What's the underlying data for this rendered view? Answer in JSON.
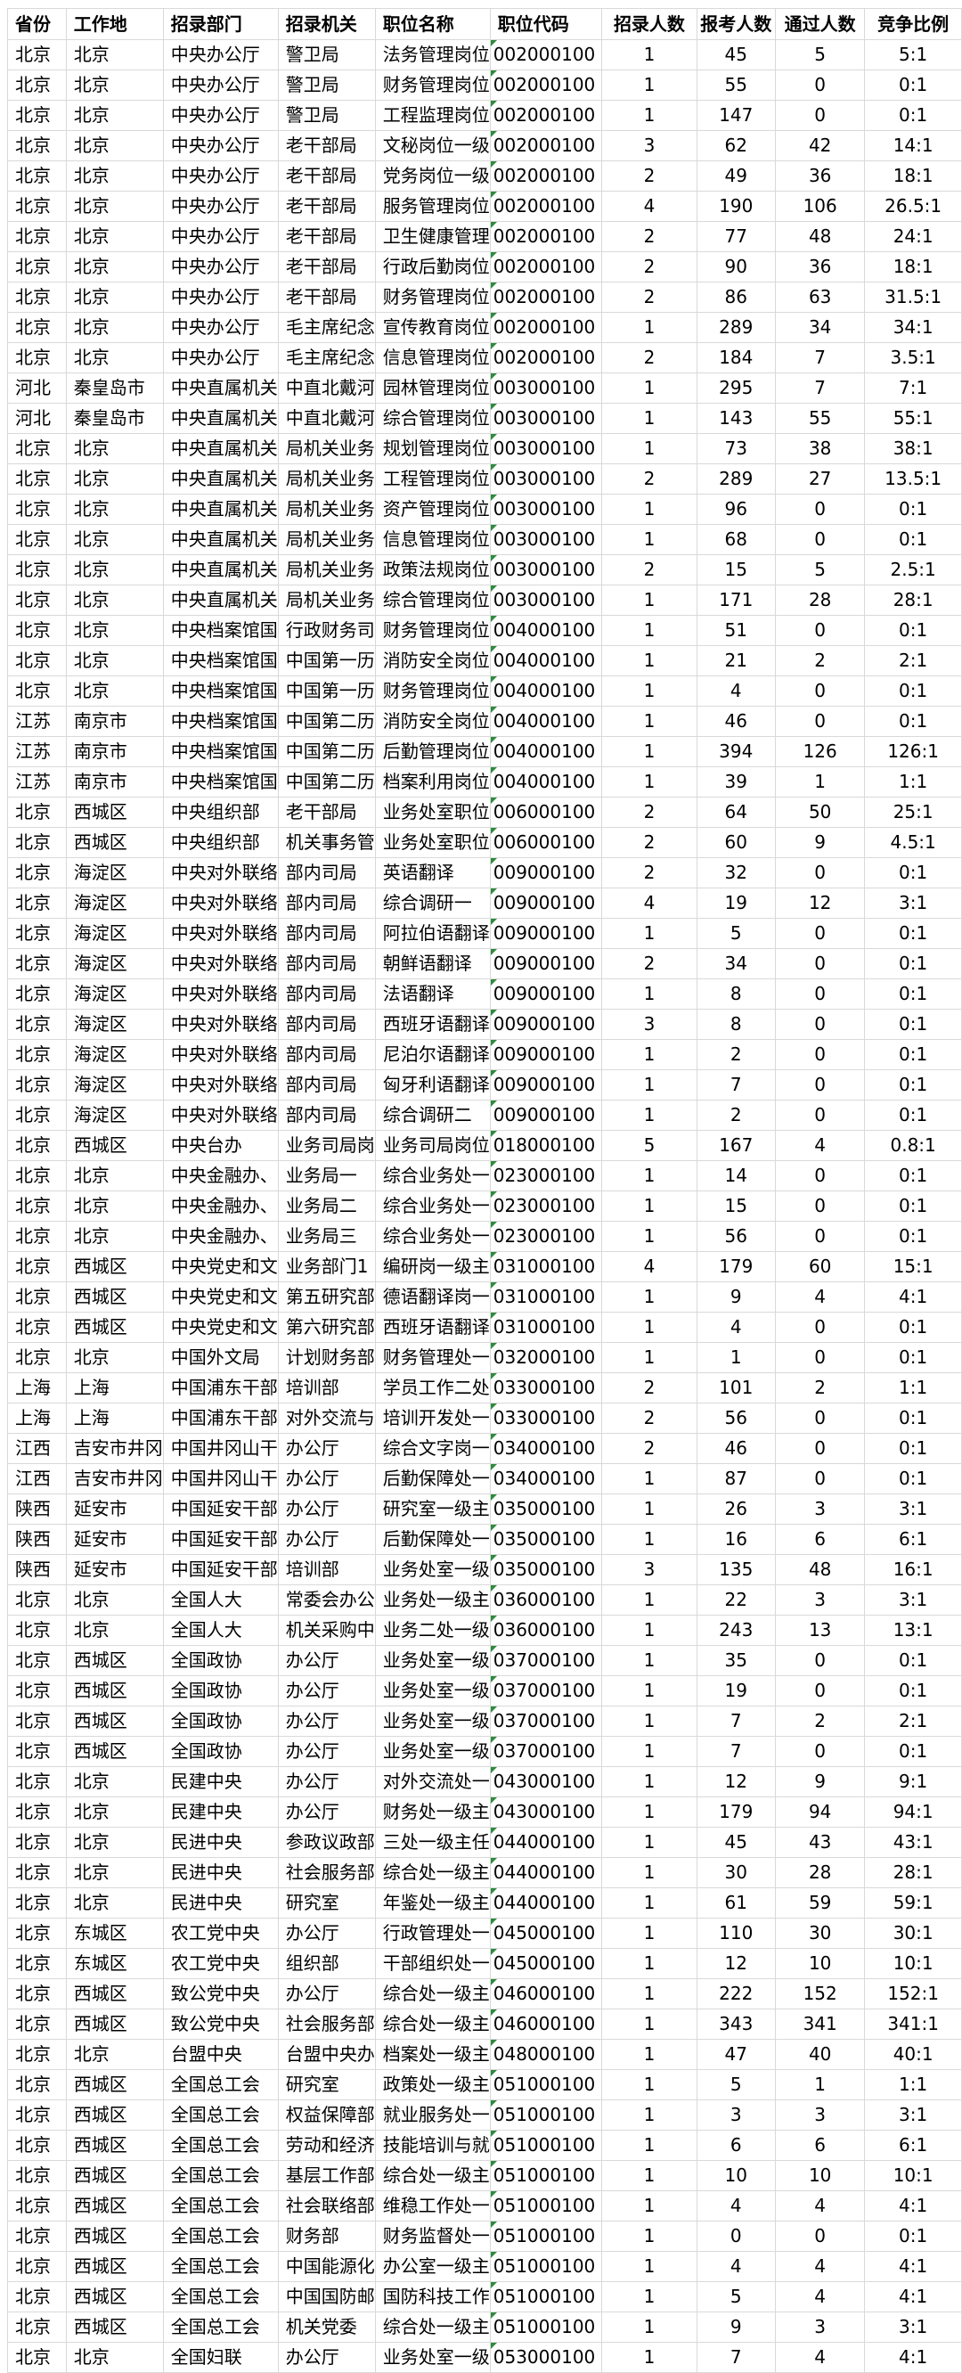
{
  "table": {
    "columns": [
      "省份",
      "工作地",
      "招录部门",
      "招录机关",
      "职位名称",
      "职位代码",
      "招录人数",
      "报考人数",
      "通过人数",
      "竞争比例"
    ],
    "column_keys": [
      "province",
      "city",
      "department",
      "agency",
      "position",
      "code",
      "recruit-count",
      "applicant-count",
      "passed-count",
      "ratio"
    ],
    "error_indicator_color": "#2e8b3d",
    "grid_color": "#d9d9d9",
    "rows": [
      [
        "北京",
        "北京",
        "中央办公厅",
        "警卫局",
        "法务管理岗位",
        "002000100",
        "1",
        "45",
        "5",
        "5:1"
      ],
      [
        "北京",
        "北京",
        "中央办公厅",
        "警卫局",
        "财务管理岗位",
        "002000100",
        "1",
        "55",
        "0",
        "0:1"
      ],
      [
        "北京",
        "北京",
        "中央办公厅",
        "警卫局",
        "工程监理岗位",
        "002000100",
        "1",
        "147",
        "0",
        "0:1"
      ],
      [
        "北京",
        "北京",
        "中央办公厅",
        "老干部局",
        "文秘岗位一级",
        "002000100",
        "3",
        "62",
        "42",
        "14:1"
      ],
      [
        "北京",
        "北京",
        "中央办公厅",
        "老干部局",
        "党务岗位一级",
        "002000100",
        "2",
        "49",
        "36",
        "18:1"
      ],
      [
        "北京",
        "北京",
        "中央办公厅",
        "老干部局",
        "服务管理岗位",
        "002000100",
        "4",
        "190",
        "106",
        "26.5:1"
      ],
      [
        "北京",
        "北京",
        "中央办公厅",
        "老干部局",
        "卫生健康管理",
        "002000100",
        "2",
        "77",
        "48",
        "24:1"
      ],
      [
        "北京",
        "北京",
        "中央办公厅",
        "老干部局",
        "行政后勤岗位",
        "002000100",
        "2",
        "90",
        "36",
        "18:1"
      ],
      [
        "北京",
        "北京",
        "中央办公厅",
        "老干部局",
        "财务管理岗位",
        "002000100",
        "2",
        "86",
        "63",
        "31.5:1"
      ],
      [
        "北京",
        "北京",
        "中央办公厅",
        "毛主席纪念",
        "宣传教育岗位",
        "002000100",
        "1",
        "289",
        "34",
        "34:1"
      ],
      [
        "北京",
        "北京",
        "中央办公厅",
        "毛主席纪念",
        "信息管理岗位",
        "002000100",
        "2",
        "184",
        "7",
        "3.5:1"
      ],
      [
        "河北",
        "秦皇岛市",
        "中央直属机关",
        "中直北戴河",
        "园林管理岗位",
        "003000100",
        "1",
        "295",
        "7",
        "7:1"
      ],
      [
        "河北",
        "秦皇岛市",
        "中央直属机关",
        "中直北戴河",
        "综合管理岗位",
        "003000100",
        "1",
        "143",
        "55",
        "55:1"
      ],
      [
        "北京",
        "北京",
        "中央直属机关",
        "局机关业务",
        "规划管理岗位",
        "003000100",
        "1",
        "73",
        "38",
        "38:1"
      ],
      [
        "北京",
        "北京",
        "中央直属机关",
        "局机关业务",
        "工程管理岗位",
        "003000100",
        "2",
        "289",
        "27",
        "13.5:1"
      ],
      [
        "北京",
        "北京",
        "中央直属机关",
        "局机关业务",
        "资产管理岗位",
        "003000100",
        "1",
        "96",
        "0",
        "0:1"
      ],
      [
        "北京",
        "北京",
        "中央直属机关",
        "局机关业务",
        "信息管理岗位",
        "003000100",
        "1",
        "68",
        "0",
        "0:1"
      ],
      [
        "北京",
        "北京",
        "中央直属机关",
        "局机关业务",
        "政策法规岗位",
        "003000100",
        "2",
        "15",
        "5",
        "2.5:1"
      ],
      [
        "北京",
        "北京",
        "中央直属机关",
        "局机关业务",
        "综合管理岗位",
        "003000100",
        "1",
        "171",
        "28",
        "28:1"
      ],
      [
        "北京",
        "北京",
        "中央档案馆国",
        "行政财务司",
        "财务管理岗位",
        "004000100",
        "1",
        "51",
        "0",
        "0:1"
      ],
      [
        "北京",
        "北京",
        "中央档案馆国",
        "中国第一历",
        "消防安全岗位",
        "004000100",
        "1",
        "21",
        "2",
        "2:1"
      ],
      [
        "北京",
        "北京",
        "中央档案馆国",
        "中国第一历",
        "财务管理岗位",
        "004000100",
        "1",
        "4",
        "0",
        "0:1"
      ],
      [
        "江苏",
        "南京市",
        "中央档案馆国",
        "中国第二历",
        "消防安全岗位",
        "004000100",
        "1",
        "46",
        "0",
        "0:1"
      ],
      [
        "江苏",
        "南京市",
        "中央档案馆国",
        "中国第二历",
        "后勤管理岗位",
        "004000100",
        "1",
        "394",
        "126",
        "126:1"
      ],
      [
        "江苏",
        "南京市",
        "中央档案馆国",
        "中国第二历",
        "档案利用岗位",
        "004000100",
        "1",
        "39",
        "1",
        "1:1"
      ],
      [
        "北京",
        "西城区",
        "中央组织部",
        "老干部局",
        "业务处室职位",
        "006000100",
        "2",
        "64",
        "50",
        "25:1"
      ],
      [
        "北京",
        "西城区",
        "中央组织部",
        "机关事务管",
        "业务处室职位",
        "006000100",
        "2",
        "60",
        "9",
        "4.5:1"
      ],
      [
        "北京",
        "海淀区",
        "中央对外联络",
        "部内司局",
        "英语翻译",
        "009000100",
        "2",
        "32",
        "0",
        "0:1"
      ],
      [
        "北京",
        "海淀区",
        "中央对外联络",
        "部内司局",
        "综合调研一",
        "009000100",
        "4",
        "19",
        "12",
        "3:1"
      ],
      [
        "北京",
        "海淀区",
        "中央对外联络",
        "部内司局",
        "阿拉伯语翻译",
        "009000100",
        "1",
        "5",
        "0",
        "0:1"
      ],
      [
        "北京",
        "海淀区",
        "中央对外联络",
        "部内司局",
        "朝鲜语翻译",
        "009000100",
        "2",
        "34",
        "0",
        "0:1"
      ],
      [
        "北京",
        "海淀区",
        "中央对外联络",
        "部内司局",
        "法语翻译",
        "009000100",
        "1",
        "8",
        "0",
        "0:1"
      ],
      [
        "北京",
        "海淀区",
        "中央对外联络",
        "部内司局",
        "西班牙语翻译",
        "009000100",
        "3",
        "8",
        "0",
        "0:1"
      ],
      [
        "北京",
        "海淀区",
        "中央对外联络",
        "部内司局",
        "尼泊尔语翻译",
        "009000100",
        "1",
        "2",
        "0",
        "0:1"
      ],
      [
        "北京",
        "海淀区",
        "中央对外联络",
        "部内司局",
        "匈牙利语翻译",
        "009000100",
        "1",
        "7",
        "0",
        "0:1"
      ],
      [
        "北京",
        "海淀区",
        "中央对外联络",
        "部内司局",
        "综合调研二",
        "009000100",
        "1",
        "2",
        "0",
        "0:1"
      ],
      [
        "北京",
        "西城区",
        "中央台办",
        "业务司局岗",
        "业务司局岗位",
        "018000100",
        "5",
        "167",
        "4",
        "0.8:1"
      ],
      [
        "北京",
        "北京",
        "中央金融办、",
        "业务局一",
        "综合业务处一",
        "023000100",
        "1",
        "14",
        "0",
        "0:1"
      ],
      [
        "北京",
        "北京",
        "中央金融办、",
        "业务局二",
        "综合业务处一",
        "023000100",
        "1",
        "15",
        "0",
        "0:1"
      ],
      [
        "北京",
        "北京",
        "中央金融办、",
        "业务局三",
        "综合业务处一",
        "023000100",
        "1",
        "56",
        "0",
        "0:1"
      ],
      [
        "北京",
        "西城区",
        "中央党史和文",
        "业务部门1",
        "编研岗一级主",
        "031000100",
        "4",
        "179",
        "60",
        "15:1"
      ],
      [
        "北京",
        "西城区",
        "中央党史和文",
        "第五研究部",
        "德语翻译岗一",
        "031000100",
        "1",
        "9",
        "4",
        "4:1"
      ],
      [
        "北京",
        "西城区",
        "中央党史和文",
        "第六研究部",
        "西班牙语翻译",
        "031000100",
        "1",
        "4",
        "0",
        "0:1"
      ],
      [
        "北京",
        "北京",
        "中国外文局",
        "计划财务部",
        "财务管理处一",
        "032000100",
        "1",
        "1",
        "0",
        "0:1"
      ],
      [
        "上海",
        "上海",
        "中国浦东干部",
        "培训部",
        "学员工作二处",
        "033000100",
        "2",
        "101",
        "2",
        "1:1"
      ],
      [
        "上海",
        "上海",
        "中国浦东干部",
        "对外交流与",
        "培训开发处一",
        "033000100",
        "2",
        "56",
        "0",
        "0:1"
      ],
      [
        "江西",
        "吉安市井冈",
        "中国井冈山干",
        "办公厅",
        "综合文字岗一",
        "034000100",
        "2",
        "46",
        "0",
        "0:1"
      ],
      [
        "江西",
        "吉安市井冈",
        "中国井冈山干",
        "办公厅",
        "后勤保障处一",
        "034000100",
        "1",
        "87",
        "0",
        "0:1"
      ],
      [
        "陕西",
        "延安市",
        "中国延安干部",
        "办公厅",
        "研究室一级主",
        "035000100",
        "1",
        "26",
        "3",
        "3:1"
      ],
      [
        "陕西",
        "延安市",
        "中国延安干部",
        "办公厅",
        "后勤保障处一",
        "035000100",
        "1",
        "16",
        "6",
        "6:1"
      ],
      [
        "陕西",
        "延安市",
        "中国延安干部",
        "培训部",
        "业务处室一级",
        "035000100",
        "3",
        "135",
        "48",
        "16:1"
      ],
      [
        "北京",
        "北京",
        "全国人大",
        "常委会办公",
        "业务处一级主",
        "036000100",
        "1",
        "22",
        "3",
        "3:1"
      ],
      [
        "北京",
        "北京",
        "全国人大",
        "机关采购中",
        "业务二处一级",
        "036000100",
        "1",
        "243",
        "13",
        "13:1"
      ],
      [
        "北京",
        "西城区",
        "全国政协",
        "办公厅",
        "业务处室一级",
        "037000100",
        "1",
        "35",
        "0",
        "0:1"
      ],
      [
        "北京",
        "西城区",
        "全国政协",
        "办公厅",
        "业务处室一级",
        "037000100",
        "1",
        "19",
        "0",
        "0:1"
      ],
      [
        "北京",
        "西城区",
        "全国政协",
        "办公厅",
        "业务处室一级",
        "037000100",
        "1",
        "7",
        "2",
        "2:1"
      ],
      [
        "北京",
        "西城区",
        "全国政协",
        "办公厅",
        "业务处室一级",
        "037000100",
        "1",
        "7",
        "0",
        "0:1"
      ],
      [
        "北京",
        "北京",
        "民建中央",
        "办公厅",
        "对外交流处一",
        "043000100",
        "1",
        "12",
        "9",
        "9:1"
      ],
      [
        "北京",
        "北京",
        "民建中央",
        "办公厅",
        "财务处一级主",
        "043000100",
        "1",
        "179",
        "94",
        "94:1"
      ],
      [
        "北京",
        "北京",
        "民进中央",
        "参政议政部",
        "三处一级主任",
        "044000100",
        "1",
        "45",
        "43",
        "43:1"
      ],
      [
        "北京",
        "北京",
        "民进中央",
        "社会服务部",
        "综合处一级主",
        "044000100",
        "1",
        "30",
        "28",
        "28:1"
      ],
      [
        "北京",
        "北京",
        "民进中央",
        "研究室",
        "年鉴处一级主",
        "044000100",
        "1",
        "61",
        "59",
        "59:1"
      ],
      [
        "北京",
        "东城区",
        "农工党中央",
        "办公厅",
        "行政管理处一",
        "045000100",
        "1",
        "110",
        "30",
        "30:1"
      ],
      [
        "北京",
        "东城区",
        "农工党中央",
        "组织部",
        "干部组织处一",
        "045000100",
        "1",
        "12",
        "10",
        "10:1"
      ],
      [
        "北京",
        "西城区",
        "致公党中央",
        "办公厅",
        "综合处一级主",
        "046000100",
        "1",
        "222",
        "152",
        "152:1"
      ],
      [
        "北京",
        "西城区",
        "致公党中央",
        "社会服务部",
        "综合处一级主",
        "046000100",
        "1",
        "343",
        "341",
        "341:1"
      ],
      [
        "北京",
        "北京",
        "台盟中央",
        "台盟中央办",
        "档案处一级主",
        "048000100",
        "1",
        "47",
        "40",
        "40:1"
      ],
      [
        "北京",
        "西城区",
        "全国总工会",
        "研究室",
        "政策处一级主",
        "051000100",
        "1",
        "5",
        "1",
        "1:1"
      ],
      [
        "北京",
        "西城区",
        "全国总工会",
        "权益保障部",
        "就业服务处一",
        "051000100",
        "1",
        "3",
        "3",
        "3:1"
      ],
      [
        "北京",
        "西城区",
        "全国总工会",
        "劳动和经济",
        "技能培训与就",
        "051000100",
        "1",
        "6",
        "6",
        "6:1"
      ],
      [
        "北京",
        "西城区",
        "全国总工会",
        "基层工作部",
        "综合处一级主",
        "051000100",
        "1",
        "10",
        "10",
        "10:1"
      ],
      [
        "北京",
        "西城区",
        "全国总工会",
        "社会联络部",
        "维稳工作处一",
        "051000100",
        "1",
        "4",
        "4",
        "4:1"
      ],
      [
        "北京",
        "西城区",
        "全国总工会",
        "财务部",
        "财务监督处一",
        "051000100",
        "1",
        "0",
        "0",
        "0:1"
      ],
      [
        "北京",
        "西城区",
        "全国总工会",
        "中国能源化",
        "办公室一级主",
        "051000100",
        "1",
        "4",
        "4",
        "4:1"
      ],
      [
        "北京",
        "西城区",
        "全国总工会",
        "中国国防邮",
        "国防科技工作",
        "051000100",
        "1",
        "5",
        "4",
        "4:1"
      ],
      [
        "北京",
        "西城区",
        "全国总工会",
        "机关党委",
        "综合处一级主",
        "051000100",
        "1",
        "9",
        "3",
        "3:1"
      ],
      [
        "北京",
        "北京",
        "全国妇联",
        "办公厅",
        "业务处室一级",
        "053000100",
        "1",
        "7",
        "4",
        "4:1"
      ]
    ]
  }
}
